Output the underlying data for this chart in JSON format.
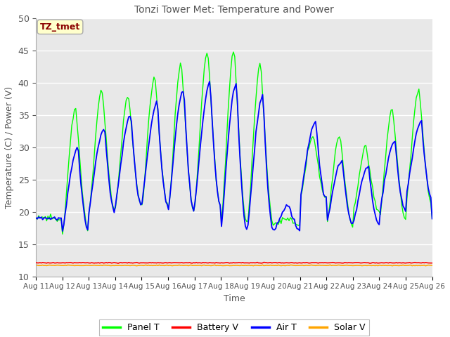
{
  "title": "Tonzi Tower Met: Temperature and Power",
  "xlabel": "Time",
  "ylabel": "Temperature (C) / Power (V)",
  "ylim": [
    10,
    50
  ],
  "yticks": [
    10,
    15,
    20,
    25,
    30,
    35,
    40,
    45,
    50
  ],
  "annotation_text": "TZ_tmet",
  "annotation_color": "#8B0000",
  "annotation_bg": "#FFFFCC",
  "annotation_border": "#AAAAAA",
  "plot_bg_color": "#E8E8E8",
  "fig_bg_color": "#FFFFFF",
  "panel_t_color": "#00FF00",
  "battery_v_color": "#FF0000",
  "air_t_color": "#0000FF",
  "solar_v_color": "#FFA500",
  "legend_labels": [
    "Panel T",
    "Battery V",
    "Air T",
    "Solar V"
  ],
  "x_tick_labels": [
    "Aug 11",
    "Aug 12",
    "Aug 13",
    "Aug 14",
    "Aug 15",
    "Aug 16",
    "Aug 17",
    "Aug 18",
    "Aug 19",
    "Aug 20",
    "Aug 21",
    "Aug 22",
    "Aug 23",
    "Aug 24",
    "Aug 25",
    "Aug 26"
  ],
  "panel_peaks": [
    19,
    36,
    39,
    38,
    41,
    43,
    45,
    45,
    43,
    19,
    32,
    32,
    30,
    36,
    39,
    40
  ],
  "panel_valleys": [
    19,
    17,
    20,
    21,
    21,
    20,
    21,
    18,
    18,
    18,
    22,
    18,
    20,
    19,
    21,
    19
  ],
  "air_peaks": [
    19,
    30,
    33,
    35,
    37,
    39,
    40,
    40,
    38,
    21,
    34,
    28,
    27,
    31,
    34,
    35
  ],
  "air_valleys": [
    19,
    17,
    20,
    21,
    21,
    20,
    21,
    17,
    17,
    17,
    22,
    18,
    18,
    20,
    22,
    19
  ],
  "battery_v_level": 12.1,
  "solar_v_level": 11.7,
  "figsize": [
    6.4,
    4.8
  ],
  "dpi": 100
}
